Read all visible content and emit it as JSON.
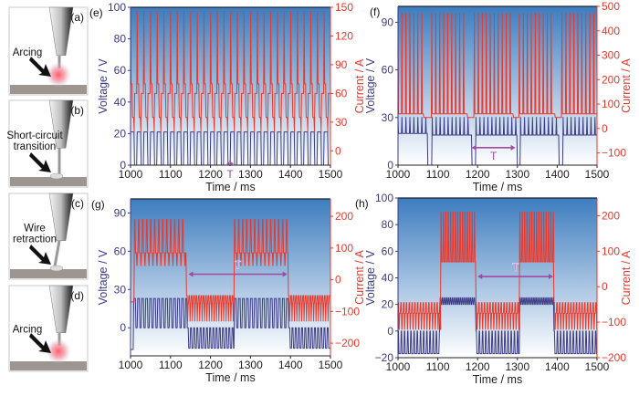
{
  "schematics": [
    {
      "letter": "(a)",
      "label": [
        "Arcing"
      ],
      "state": "arc"
    },
    {
      "letter": "(b)",
      "label": [
        "Short-circuit",
        "transition"
      ],
      "state": "short"
    },
    {
      "letter": "(c)",
      "label": [
        "Wire",
        "retraction"
      ],
      "state": "retract"
    },
    {
      "letter": "(d)",
      "label": [
        "Arcing"
      ],
      "state": "arc"
    }
  ],
  "colors": {
    "voltage": "#3b3b86",
    "current": "#e8392c",
    "period": "#a04aa0",
    "bg_top": "#3d7dbf",
    "bg_bottom": "#ffffff"
  },
  "chart_data": [
    {
      "panel": "(e)",
      "type": "line",
      "xlabel": "Time / ms",
      "ylabel": "Voltage / V",
      "y2label": "Current / A",
      "xlim": [
        1000,
        1500
      ],
      "ylim": [
        0,
        100
      ],
      "y2lim": [
        -15,
        150
      ],
      "xticks": [
        1000,
        1100,
        1200,
        1300,
        1400,
        1500
      ],
      "yticks": [
        0,
        20,
        40,
        60,
        80,
        100
      ],
      "y2ticks": [
        0,
        30,
        60,
        90,
        120,
        150
      ],
      "period_label": "T",
      "period_range_ms": [
        1240,
        1258
      ],
      "period_level_V": 1,
      "period_label_pos": "below",
      "voltage": [
        {
          "start": 1000,
          "end": 1500,
          "period_ms": 16.7,
          "cycle": [
            [
              0,
              21
            ],
            [
              0.6,
              0
            ]
          ]
        }
      ],
      "current": [
        {
          "start": 1000,
          "end": 1500,
          "period_ms": 16.7,
          "cycle": [
            [
              0,
              145
            ],
            [
              0.08,
              70
            ],
            [
              0.3,
              35
            ],
            [
              0.55,
              20
            ],
            [
              0.62,
              60
            ]
          ]
        }
      ]
    },
    {
      "panel": "(f)",
      "type": "line",
      "xlabel": "Time / ms",
      "ylabel": "Voltage / V",
      "y2label": "Current / A",
      "xlim": [
        1000,
        1500
      ],
      "ylim": [
        0,
        100
      ],
      "y2lim": [
        -150,
        500
      ],
      "xticks": [
        1000,
        1100,
        1200,
        1300,
        1400,
        1500
      ],
      "yticks": [
        0,
        30,
        60,
        90
      ],
      "y2ticks": [
        -100,
        0,
        100,
        200,
        300,
        400,
        500
      ],
      "period_label": "T",
      "period_range_ms": [
        1185,
        1295
      ],
      "period_level_V": 11,
      "period_label_pos": "below",
      "voltage": [
        {
          "start": 1000,
          "end": 1075,
          "period_ms": 10,
          "cycle": [
            [
              0,
              30
            ],
            [
              0.12,
              20
            ]
          ]
        },
        {
          "start": 1075,
          "end": 1086,
          "period_ms": 11,
          "cycle": [
            [
              0,
              0
            ]
          ]
        },
        {
          "start": 1086,
          "end": 1186,
          "period_ms": 10,
          "cycle": [
            [
              0,
              30
            ],
            [
              0.12,
              19
            ]
          ]
        },
        {
          "start": 1186,
          "end": 1196,
          "period_ms": 10,
          "cycle": [
            [
              0,
              0
            ]
          ]
        },
        {
          "start": 1196,
          "end": 1300,
          "period_ms": 10,
          "cycle": [
            [
              0,
              30
            ],
            [
              0.12,
              19
            ]
          ]
        },
        {
          "start": 1300,
          "end": 1308,
          "period_ms": 8,
          "cycle": [
            [
              0,
              0
            ]
          ]
        },
        {
          "start": 1308,
          "end": 1405,
          "period_ms": 10,
          "cycle": [
            [
              0,
              30
            ],
            [
              0.12,
              19
            ]
          ]
        },
        {
          "start": 1405,
          "end": 1415,
          "period_ms": 10,
          "cycle": [
            [
              0,
              0
            ]
          ]
        },
        {
          "start": 1415,
          "end": 1500,
          "period_ms": 10,
          "cycle": [
            [
              0,
              30
            ],
            [
              0.12,
              19
            ]
          ]
        }
      ],
      "current": [
        {
          "start": 1000,
          "end": 1065,
          "period_ms": 10,
          "cycle": [
            [
              0,
              470
            ],
            [
              0.12,
              60
            ]
          ]
        },
        {
          "start": 1065,
          "end": 1085,
          "period_ms": 20,
          "cycle": [
            [
              0,
              45
            ]
          ]
        },
        {
          "start": 1085,
          "end": 1175,
          "period_ms": 10,
          "cycle": [
            [
              0,
              470
            ],
            [
              0.12,
              60
            ]
          ]
        },
        {
          "start": 1175,
          "end": 1192,
          "period_ms": 17,
          "cycle": [
            [
              0,
              45
            ]
          ]
        },
        {
          "start": 1192,
          "end": 1290,
          "period_ms": 10,
          "cycle": [
            [
              0,
              470
            ],
            [
              0.12,
              60
            ]
          ]
        },
        {
          "start": 1290,
          "end": 1305,
          "period_ms": 15,
          "cycle": [
            [
              0,
              45
            ]
          ]
        },
        {
          "start": 1305,
          "end": 1395,
          "period_ms": 10,
          "cycle": [
            [
              0,
              470
            ],
            [
              0.12,
              60
            ]
          ]
        },
        {
          "start": 1395,
          "end": 1412,
          "period_ms": 17,
          "cycle": [
            [
              0,
              45
            ]
          ]
        },
        {
          "start": 1412,
          "end": 1500,
          "period_ms": 10,
          "cycle": [
            [
              0,
              470
            ],
            [
              0.12,
              60
            ]
          ]
        }
      ]
    },
    {
      "panel": "(g)",
      "type": "line",
      "xlabel": "Time / ms",
      "ylabel": "Voltage / V",
      "y2label": "Current / A",
      "xlim": [
        1000,
        1500
      ],
      "ylim": [
        -22,
        101
      ],
      "y2lim": [
        -240,
        255
      ],
      "xticks": [
        1000,
        1100,
        1200,
        1300,
        1400,
        1500
      ],
      "yticks": [
        0,
        30,
        60,
        90
      ],
      "y2ticks": [
        -200,
        -100,
        0,
        100,
        200
      ],
      "period_label": "T",
      "period_range_ms": [
        1145,
        1392
      ],
      "period_level_V": 42,
      "period_label_pos": "above",
      "voltage": [
        {
          "start": 1000,
          "end": 1008,
          "period_ms": 8,
          "cycle": [
            [
              0,
              -17
            ]
          ]
        },
        {
          "start": 1008,
          "end": 1142,
          "period_ms": 10,
          "cycle": [
            [
              0,
              23
            ],
            [
              0.55,
              0
            ]
          ]
        },
        {
          "start": 1142,
          "end": 1260,
          "period_ms": 8,
          "cycle": [
            [
              0,
              0
            ],
            [
              0.45,
              -16
            ]
          ]
        },
        {
          "start": 1260,
          "end": 1396,
          "period_ms": 10,
          "cycle": [
            [
              0,
              23
            ],
            [
              0.55,
              0
            ]
          ]
        },
        {
          "start": 1396,
          "end": 1500,
          "period_ms": 8,
          "cycle": [
            [
              0,
              0
            ],
            [
              0.45,
              -16
            ]
          ]
        }
      ],
      "current": [
        {
          "start": 1000,
          "end": 1010,
          "period_ms": 10,
          "cycle": [
            [
              0,
              -70
            ]
          ]
        },
        {
          "start": 1010,
          "end": 1140,
          "period_ms": 10,
          "cycle": [
            [
              0,
              190
            ],
            [
              0.25,
              85
            ],
            [
              0.6,
              45
            ],
            [
              0.75,
              85
            ]
          ]
        },
        {
          "start": 1140,
          "end": 1260,
          "period_ms": 6,
          "cycle": [
            [
              0,
              -50
            ],
            [
              0.5,
              -130
            ],
            [
              0.7,
              -75
            ]
          ]
        },
        {
          "start": 1260,
          "end": 1395,
          "period_ms": 10,
          "cycle": [
            [
              0,
              190
            ],
            [
              0.25,
              85
            ],
            [
              0.6,
              45
            ],
            [
              0.75,
              85
            ]
          ]
        },
        {
          "start": 1395,
          "end": 1500,
          "period_ms": 6,
          "cycle": [
            [
              0,
              -50
            ],
            [
              0.5,
              -130
            ],
            [
              0.7,
              -75
            ]
          ]
        }
      ]
    },
    {
      "panel": "(h)",
      "type": "line",
      "xlabel": "Time / ms",
      "ylabel": "Voltage / V",
      "y2label": "Current / A",
      "xlim": [
        1000,
        1500
      ],
      "ylim": [
        -20,
        100
      ],
      "y2lim": [
        -200,
        250
      ],
      "xticks": [
        1000,
        1100,
        1200,
        1300,
        1400,
        1500
      ],
      "yticks": [
        -20,
        0,
        20,
        40,
        60,
        80,
        100
      ],
      "y2ticks": [
        -200,
        -100,
        0,
        100,
        200
      ],
      "period_label": "T",
      "period_range_ms": [
        1200,
        1390
      ],
      "period_level_V": 41,
      "period_label_pos": "above",
      "voltage": [
        {
          "start": 1000,
          "end": 1106,
          "period_ms": 8,
          "cycle": [
            [
              0,
              0
            ],
            [
              0.3,
              -17
            ]
          ]
        },
        {
          "start": 1106,
          "end": 1196,
          "period_ms": 5,
          "cycle": [
            [
              0,
              25
            ],
            [
              0.5,
              20
            ]
          ]
        },
        {
          "start": 1196,
          "end": 1306,
          "period_ms": 8,
          "cycle": [
            [
              0,
              0
            ],
            [
              0.3,
              -17
            ]
          ]
        },
        {
          "start": 1306,
          "end": 1392,
          "period_ms": 5,
          "cycle": [
            [
              0,
              25
            ],
            [
              0.5,
              20
            ]
          ]
        },
        {
          "start": 1392,
          "end": 1500,
          "period_ms": 8,
          "cycle": [
            [
              0,
              0
            ],
            [
              0.3,
              -17
            ]
          ]
        }
      ],
      "current": [
        {
          "start": 1000,
          "end": 1108,
          "period_ms": 7,
          "cycle": [
            [
              0,
              -45
            ],
            [
              0.35,
              -120
            ],
            [
              0.6,
              -75
            ]
          ]
        },
        {
          "start": 1108,
          "end": 1196,
          "period_ms": 6,
          "cycle": [
            [
              0,
              210
            ],
            [
              0.3,
              70
            ]
          ]
        },
        {
          "start": 1196,
          "end": 1306,
          "period_ms": 7,
          "cycle": [
            [
              0,
              -45
            ],
            [
              0.35,
              -120
            ],
            [
              0.6,
              -75
            ]
          ]
        },
        {
          "start": 1306,
          "end": 1392,
          "period_ms": 6,
          "cycle": [
            [
              0,
              210
            ],
            [
              0.3,
              70
            ]
          ]
        },
        {
          "start": 1392,
          "end": 1500,
          "period_ms": 7,
          "cycle": [
            [
              0,
              -45
            ],
            [
              0.35,
              -120
            ],
            [
              0.6,
              -75
            ]
          ]
        }
      ]
    }
  ]
}
